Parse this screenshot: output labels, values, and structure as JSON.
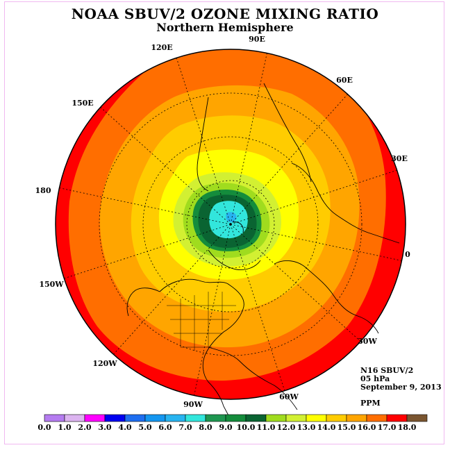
{
  "title": "NOAA SBUV/2 OZONE MIXING RATIO",
  "subtitle": "Northern Hemisphere",
  "longitude_labels": [
    "90E",
    "60E",
    "30E",
    "0",
    "30W",
    "60W",
    "90W",
    "120W",
    "150W",
    "180",
    "150E",
    "120E"
  ],
  "info": {
    "satellite": "N16 SBUV/2",
    "level": "05 hPa",
    "date": "September 9, 2013",
    "units": "PPM"
  },
  "colorbar": {
    "labels": [
      "0.0",
      "1.0",
      "2.0",
      "3.0",
      "4.0",
      "5.0",
      "6.0",
      "7.0",
      "8.0",
      "9.0",
      "10.0",
      "11.0",
      "12.0",
      "13.0",
      "14.0",
      "15.0",
      "16.0",
      "17.0",
      "18.0"
    ],
    "colors": [
      "#b57cf0",
      "#dcb4f0",
      "#ff00ff",
      "#0000f0",
      "#1e6ef0",
      "#1496f0",
      "#28b4f0",
      "#32e6dc",
      "#1e9650",
      "#148c3c",
      "#0a6432",
      "#a0dc1e",
      "#d2f032",
      "#ffff00",
      "#ffcc00",
      "#ffa500",
      "#ff6e00",
      "#ff0000",
      "#7a5530"
    ]
  },
  "map_colors": {
    "ocean_boundary": "#ff0000",
    "band_orange_dark": "#ff6e00",
    "band_orange": "#ffa500",
    "band_gold": "#ffcc00",
    "band_yellow": "#ffff00",
    "band_lime": "#d2f032",
    "band_green_light": "#a0dc1e",
    "band_green_dark": "#0a6432",
    "band_green": "#148c3c",
    "band_cyan": "#32e6dc",
    "band_blue": "#28b4f0"
  }
}
